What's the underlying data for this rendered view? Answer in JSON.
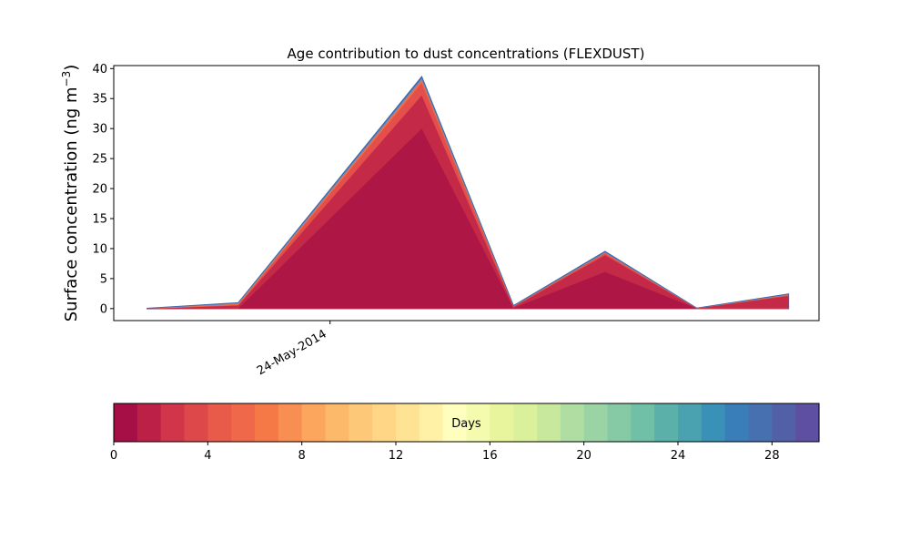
{
  "chart_data": {
    "type": "area",
    "title": "Age contribution to dust concentrations (FLEXDUST)",
    "ylabel_main": "Surface concentration (ng m",
    "ylabel_sup": "−3",
    "ylabel_close": ")",
    "xlabel": "",
    "ylim": [
      -2,
      40.5
    ],
    "xlim": [
      0,
      15
    ],
    "yticks": [
      0,
      5,
      10,
      15,
      20,
      25,
      30,
      35,
      40
    ],
    "ytick_labels": [
      "0",
      "5",
      "10",
      "15",
      "20",
      "25",
      "30",
      "35",
      "40"
    ],
    "xticks": [
      {
        "x": 4.6,
        "label": "24-May-2014"
      }
    ],
    "x": [
      0.7,
      2.65,
      6.55,
      8.5,
      10.45,
      12.4,
      14.35
    ],
    "series": [
      {
        "values": [
          -0.1,
          0.0,
          30.0,
          0.1,
          6.1,
          0.0,
          0.0
        ]
      },
      {
        "values": [
          -0.05,
          0.5,
          35.5,
          0.25,
          8.9,
          0.0,
          2.1
        ]
      },
      {
        "values": [
          -0.04,
          0.6,
          37.6,
          0.3,
          9.2,
          0.0,
          2.2
        ]
      },
      {
        "values": [
          -0.03,
          0.8,
          38.1,
          0.35,
          9.3,
          0.0,
          2.3
        ]
      },
      {
        "values": [
          0.0,
          0.9,
          38.4,
          0.4,
          9.4,
          0.05,
          2.35
        ]
      },
      {
        "values": [
          0.0,
          0.95,
          38.6,
          0.45,
          9.5,
          0.05,
          2.4
        ]
      }
    ],
    "series_colors": [
      "#ae1745",
      "#c42a47",
      "#e34f4a",
      "#f36c43",
      "#6b8cc1",
      "#3f68a6"
    ],
    "colorbar": {
      "label": "Days",
      "min": 0,
      "max": 30,
      "ticks": [
        "0",
        "4",
        "8",
        "12",
        "16",
        "20",
        "24",
        "28"
      ],
      "tick_values": [
        0,
        4,
        8,
        12,
        16,
        20,
        24,
        28
      ],
      "colors": [
        "#a50f46",
        "#bd2046",
        "#d13549",
        "#dd494a",
        "#e85a4a",
        "#ef6849",
        "#f57847",
        "#f98e52",
        "#fca55d",
        "#fdb96a",
        "#fdc878",
        "#fed685",
        "#fee394",
        "#fff1a6",
        "#feffbf",
        "#f4faae",
        "#e8f59c",
        "#dbf09b",
        "#c8e89e",
        "#b0dda2",
        "#9bd4a4",
        "#85caa4",
        "#70bfa7",
        "#5cb0aa",
        "#4aa2b1",
        "#3a91b8",
        "#3a7eb9",
        "#4770b0",
        "#5261a7",
        "#5e4fa2"
      ]
    },
    "grid": false,
    "legend": "none"
  }
}
